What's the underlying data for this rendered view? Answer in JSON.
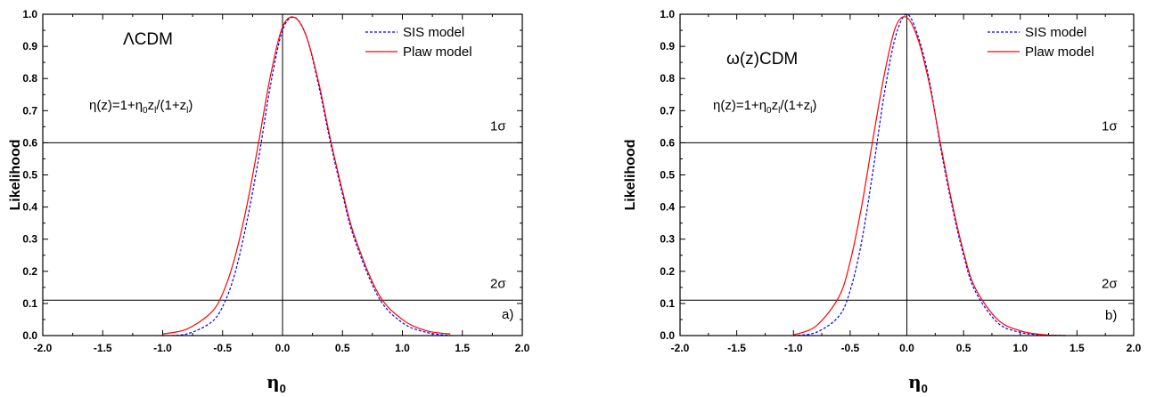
{
  "chart_data": [
    {
      "type": "line",
      "panel_label": "a)",
      "model_label": "ΛCDM",
      "equation": {
        "t1": "η(z)=1+η",
        "s1": "0",
        "t2": "z",
        "s2": "l",
        "t3": "/(1+z",
        "s3": "l",
        "t4": ")"
      },
      "xlabel": {
        "main": "η",
        "sub": "0"
      },
      "ylabel": "Likelihood",
      "xlim": [
        -2.0,
        2.0
      ],
      "ylim": [
        0.0,
        1.0
      ],
      "x_ticks": [
        -2.0,
        -1.5,
        -1.0,
        -0.5,
        0.0,
        0.5,
        1.0,
        1.5,
        2.0
      ],
      "x_tick_labels": [
        "-2.0",
        "-1.5",
        "-1.0",
        "-0.5",
        "0.0",
        "0.5",
        "1.0",
        "1.5",
        "2.0"
      ],
      "y_ticks": [
        0.0,
        0.1,
        0.2,
        0.3,
        0.4,
        0.5,
        0.6,
        0.7,
        0.8,
        0.9,
        1.0
      ],
      "y_tick_labels": [
        "0.0",
        "0.1",
        "0.2",
        "0.3",
        "0.4",
        "0.5",
        "0.6",
        "0.7",
        "0.8",
        "0.9",
        "1.0"
      ],
      "vertical_line_x": 0.0,
      "horizontal_lines": [
        {
          "y": 0.6,
          "label": "1σ"
        },
        {
          "y": 0.11,
          "label": "2σ"
        }
      ],
      "legend_position": "top-right",
      "series": [
        {
          "name": "SIS model",
          "color": "#0000ff",
          "style": "dashed",
          "x": [
            -1.0,
            -0.8,
            -0.6,
            -0.5,
            -0.4,
            -0.3,
            -0.2,
            -0.1,
            0.0,
            0.1,
            0.2,
            0.3,
            0.4,
            0.5,
            0.6,
            0.8,
            1.0,
            1.2,
            1.4
          ],
          "y": [
            0.0,
            0.005,
            0.04,
            0.09,
            0.19,
            0.35,
            0.55,
            0.78,
            0.95,
            0.99,
            0.93,
            0.78,
            0.6,
            0.44,
            0.3,
            0.12,
            0.04,
            0.01,
            0.0
          ]
        },
        {
          "name": "Plaw model",
          "color": "#ff0000",
          "style": "solid",
          "x": [
            -1.0,
            -0.8,
            -0.6,
            -0.5,
            -0.4,
            -0.3,
            -0.2,
            -0.1,
            0.0,
            0.1,
            0.2,
            0.3,
            0.4,
            0.5,
            0.6,
            0.8,
            1.0,
            1.2,
            1.4
          ],
          "y": [
            0.005,
            0.02,
            0.07,
            0.13,
            0.24,
            0.4,
            0.6,
            0.81,
            0.96,
            0.99,
            0.93,
            0.79,
            0.61,
            0.45,
            0.31,
            0.13,
            0.05,
            0.015,
            0.005
          ]
        }
      ]
    },
    {
      "type": "line",
      "panel_label": "b)",
      "model_label": "ω(z)CDM",
      "equation": {
        "t1": "η(z)=1+η",
        "s1": "0",
        "t2": "z",
        "s2": "l",
        "t3": "/(1+z",
        "s3": "l",
        "t4": ")"
      },
      "xlabel": {
        "main": "η",
        "sub": "0"
      },
      "ylabel": "Likelihood",
      "xlim": [
        -2.0,
        2.0
      ],
      "ylim": [
        0.0,
        1.0
      ],
      "x_ticks": [
        -2.0,
        -1.5,
        -1.0,
        -0.5,
        0.0,
        0.5,
        1.0,
        1.5,
        2.0
      ],
      "x_tick_labels": [
        "-2.0",
        "-1.5",
        "-1.0",
        "-0.5",
        "0.0",
        "0.5",
        "1.0",
        "1.5",
        "2.0"
      ],
      "y_ticks": [
        0.0,
        0.1,
        0.2,
        0.3,
        0.4,
        0.5,
        0.6,
        0.7,
        0.8,
        0.9,
        1.0
      ],
      "y_tick_labels": [
        "0.0",
        "0.1",
        "0.2",
        "0.3",
        "0.4",
        "0.5",
        "0.6",
        "0.7",
        "0.8",
        "0.9",
        "1.0"
      ],
      "vertical_line_x": 0.0,
      "horizontal_lines": [
        {
          "y": 0.6,
          "label": "1σ"
        },
        {
          "y": 0.11,
          "label": "2σ"
        }
      ],
      "legend_position": "top-right",
      "series": [
        {
          "name": "SIS model",
          "color": "#0000ff",
          "style": "dashed",
          "x": [
            -1.0,
            -0.8,
            -0.6,
            -0.5,
            -0.4,
            -0.3,
            -0.2,
            -0.1,
            0.0,
            0.1,
            0.2,
            0.3,
            0.4,
            0.5,
            0.6,
            0.8,
            1.0,
            1.2,
            1.4
          ],
          "y": [
            0.0,
            0.01,
            0.06,
            0.14,
            0.29,
            0.51,
            0.75,
            0.93,
            1.0,
            0.93,
            0.79,
            0.58,
            0.4,
            0.25,
            0.14,
            0.04,
            0.01,
            0.002,
            0.0
          ]
        },
        {
          "name": "Plaw model",
          "color": "#ff0000",
          "style": "solid",
          "x": [
            -1.0,
            -0.8,
            -0.6,
            -0.5,
            -0.4,
            -0.3,
            -0.2,
            -0.1,
            0.0,
            0.1,
            0.2,
            0.3,
            0.4,
            0.5,
            0.6,
            0.8,
            1.0,
            1.2,
            1.4
          ],
          "y": [
            0.002,
            0.03,
            0.12,
            0.23,
            0.4,
            0.61,
            0.81,
            0.96,
            0.99,
            0.92,
            0.78,
            0.59,
            0.41,
            0.26,
            0.15,
            0.05,
            0.015,
            0.003,
            0.0
          ]
        }
      ]
    }
  ]
}
